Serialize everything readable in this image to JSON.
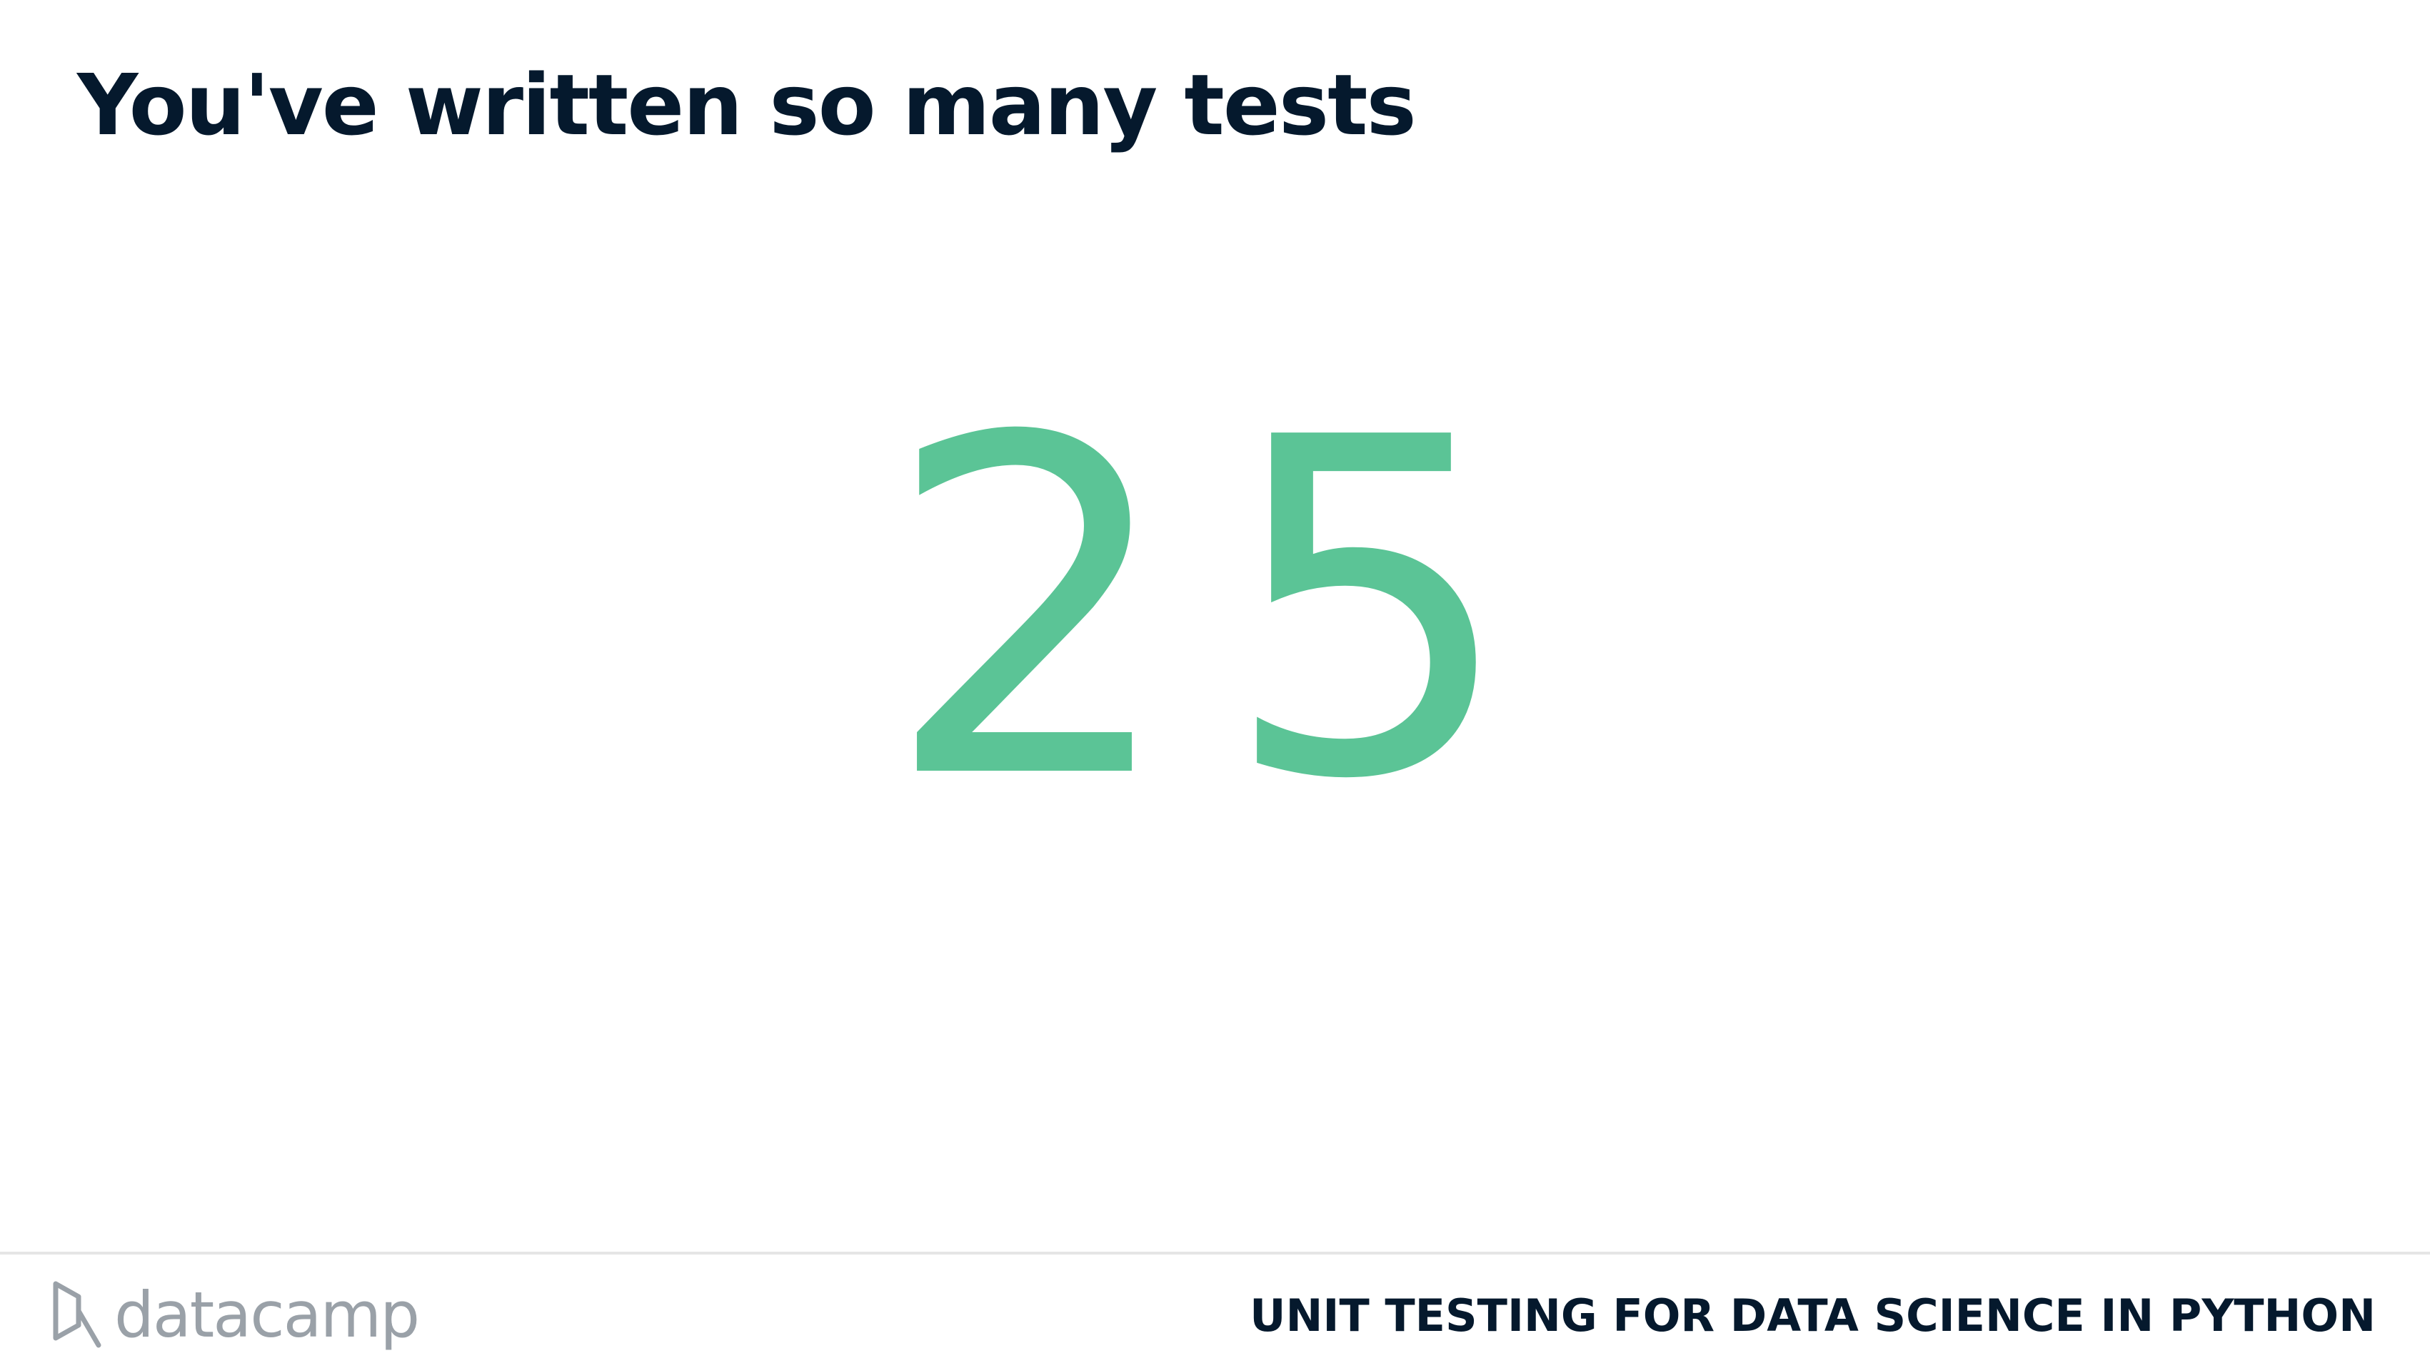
{
  "slide": {
    "title": "You've written so many tests",
    "count": "25",
    "count_color": "#5bc496",
    "title_color": "#05192d"
  },
  "footer": {
    "brand_icon": "datacamp-logo-icon",
    "brand_name": "datacamp",
    "brand_color": "#9aa1a8",
    "course_title": "UNIT TESTING FOR DATA SCIENCE IN PYTHON"
  }
}
